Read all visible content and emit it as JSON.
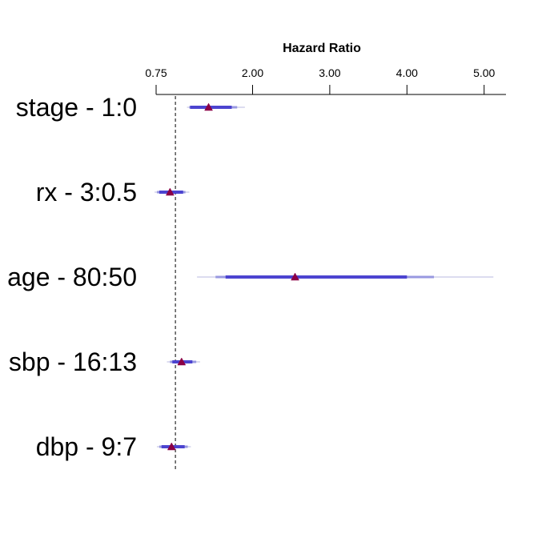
{
  "chart_data": {
    "type": "forest",
    "title": "",
    "xlabel": "Hazard Ratio",
    "xlim": [
      0.75,
      5.25
    ],
    "x_ticks": [
      {
        "value": 0.75,
        "label": "0.75"
      },
      {
        "value": 2.0,
        "label": "2.00"
      },
      {
        "value": 3.0,
        "label": "3.00"
      },
      {
        "value": 4.0,
        "label": "4.00"
      },
      {
        "value": 5.0,
        "label": "5.00"
      }
    ],
    "reference_line": 1.0,
    "rows": [
      {
        "label": "stage - 1:0",
        "estimate": 1.43,
        "ci_outer": [
          1.15,
          1.9
        ],
        "ci_middle": [
          1.18,
          1.8
        ],
        "ci_inner": [
          1.19,
          1.73
        ]
      },
      {
        "label": "rx - 3:0.5",
        "estimate": 0.93,
        "ci_outer": [
          0.73,
          1.18
        ],
        "ci_middle": [
          0.76,
          1.13
        ],
        "ci_inner": [
          0.79,
          1.1
        ]
      },
      {
        "label": "age - 80:50",
        "estimate": 2.55,
        "ci_outer": [
          1.28,
          5.12
        ],
        "ci_middle": [
          1.52,
          4.35
        ],
        "ci_inner": [
          1.65,
          4.0
        ]
      },
      {
        "label": "sbp - 16:13",
        "estimate": 1.08,
        "ci_outer": [
          0.89,
          1.32
        ],
        "ci_middle": [
          0.93,
          1.27
        ],
        "ci_inner": [
          0.96,
          1.22
        ]
      },
      {
        "label": "dbp - 9:7",
        "estimate": 0.95,
        "ci_outer": [
          0.76,
          1.2
        ],
        "ci_middle": [
          0.79,
          1.16
        ],
        "ci_inner": [
          0.82,
          1.12
        ]
      }
    ],
    "colors": {
      "ci_outer": "#dcdcf0",
      "ci_middle": "#9898e0",
      "ci_inner": "#4c44d0",
      "point": "#8b0046",
      "reference": "#000000",
      "axis": "#000000"
    }
  }
}
